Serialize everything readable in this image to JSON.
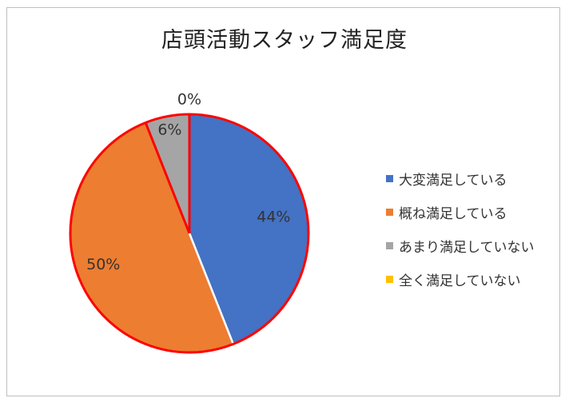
{
  "chart_data": {
    "type": "pie",
    "title": "店頭活動スタッフ満足度",
    "categories": [
      "大変満足している",
      "概ね満足している",
      "あまり満足していない",
      "全く満足していない"
    ],
    "values": [
      44,
      50,
      6,
      0
    ],
    "data_labels": [
      "44%",
      "50%",
      "6%",
      "0%"
    ],
    "colors": [
      "#4472c4",
      "#ed7d31",
      "#a5a5a5",
      "#ffc000"
    ],
    "outline_color": "#ff0000",
    "legend_position": "right"
  }
}
